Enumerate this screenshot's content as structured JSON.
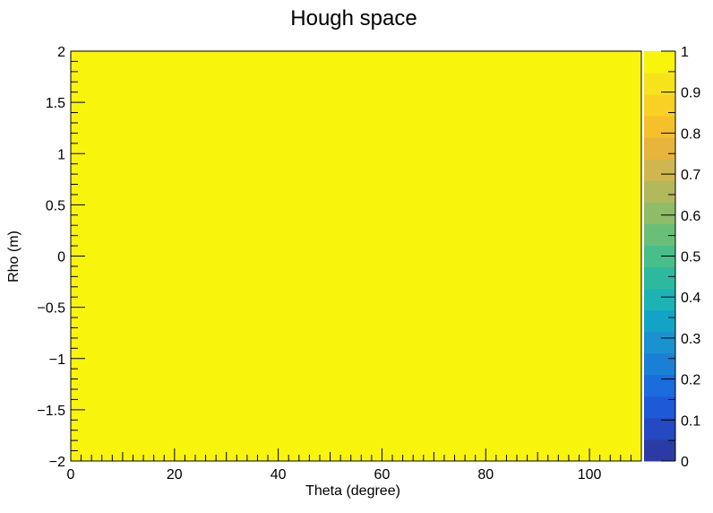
{
  "chart_data": {
    "type": "heatmap",
    "title": "Hough space",
    "xlabel": "Theta (degree)",
    "ylabel": "Rho (m)",
    "xlim": [
      0,
      110
    ],
    "ylim": [
      -2,
      2
    ],
    "x_ticks": [
      0,
      20,
      40,
      60,
      80,
      100
    ],
    "x_tick_labels": [
      "0",
      "20",
      "40",
      "60",
      "80",
      "100"
    ],
    "y_ticks": [
      -2,
      -1.5,
      -1,
      -0.5,
      0,
      0.5,
      1,
      1.5,
      2
    ],
    "y_tick_labels": [
      "−2",
      "−1.5",
      "−1",
      "−0.5",
      "0",
      "0.5",
      "1",
      "1.5",
      "2"
    ],
    "z_range": [
      0,
      1
    ],
    "z_ticks": [
      0,
      0.1,
      0.2,
      0.3,
      0.4,
      0.5,
      0.6,
      0.7,
      0.8,
      0.9,
      1
    ],
    "z_tick_labels": [
      "0",
      "0.1",
      "0.2",
      "0.3",
      "0.4",
      "0.5",
      "0.6",
      "0.7",
      "0.8",
      "0.9",
      "1"
    ],
    "cells": [
      {
        "x_range": [
          0,
          110
        ],
        "y_range": [
          -2,
          2
        ],
        "value": 1
      }
    ],
    "palette": [
      "#2a3ca4",
      "#2449c2",
      "#1e5ad8",
      "#1b6cdc",
      "#1a80d6",
      "#1992cf",
      "#12a4c6",
      "#1db2b4",
      "#2cba9f",
      "#48bf8b",
      "#6abf78",
      "#8fbd67",
      "#b2b85c",
      "#d0b64e",
      "#e7b43c",
      "#f6bf2c",
      "#f8d124",
      "#f6e31c",
      "#f8f40c"
    ],
    "plot_color": "#f8f40c"
  }
}
